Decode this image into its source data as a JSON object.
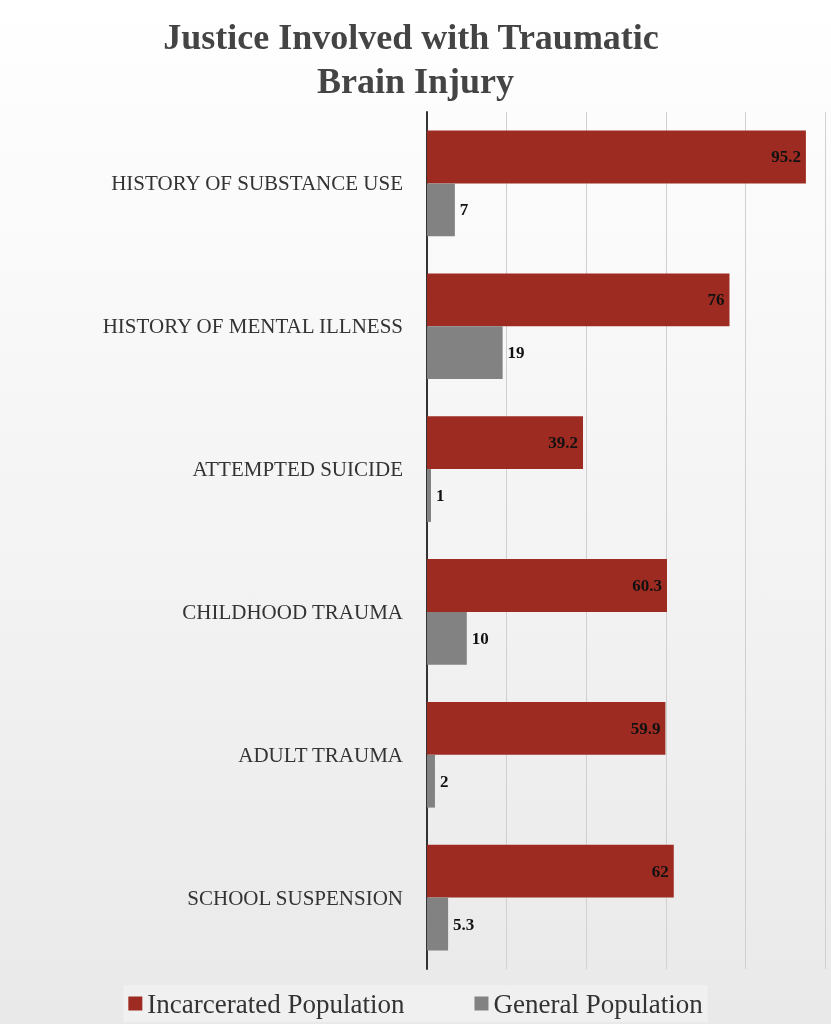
{
  "chart_data": {
    "type": "bar",
    "orientation": "horizontal",
    "title": "Justice Involved with Traumatic Brain Injury",
    "categories": [
      "HISTORY OF SUBSTANCE USE",
      "HISTORY OF MENTAL ILLNESS",
      "ATTEMPTED SUICIDE",
      "CHILDHOOD TRAUMA",
      "ADULT TRAUMA",
      "SCHOOL SUSPENSION"
    ],
    "series": [
      {
        "name": "Incarcerated Population",
        "color": "#9e2b22",
        "values": [
          95.2,
          76,
          39.2,
          60.3,
          59.9,
          62
        ]
      },
      {
        "name": "General Population",
        "color": "#828282",
        "values": [
          7,
          19,
          1,
          10,
          2,
          5.3
        ]
      }
    ],
    "xlim": [
      0,
      100
    ],
    "xticks": [
      {
        "value": 0,
        "label": null
      },
      {
        "value": 20,
        "label": null
      },
      {
        "value": 40,
        "label": null
      },
      {
        "value": 60,
        "label": null
      },
      {
        "value": 80,
        "label": null
      },
      {
        "value": 100,
        "label": null
      }
    ],
    "tick_labels": "y",
    "grid": "x",
    "legend": "bottom",
    "data_labels": true
  }
}
